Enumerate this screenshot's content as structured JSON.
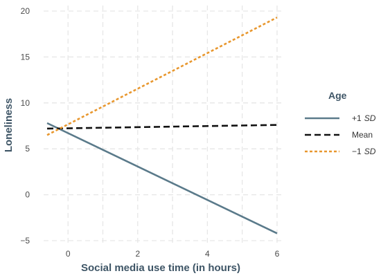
{
  "chart_data": {
    "type": "line",
    "title": "",
    "xlabel": "Social media use time (in hours)",
    "ylabel": "Loneliness",
    "xlim": [
      -0.7,
      6.2
    ],
    "ylim": [
      -5.6,
      20.6
    ],
    "xticks": [
      0,
      2,
      4,
      6
    ],
    "yticks": [
      -5,
      0,
      5,
      10,
      15,
      20
    ],
    "grid": true,
    "legend": {
      "title": "Age",
      "placement": "right"
    },
    "series": [
      {
        "name": "+1",
        "name_suffix": "SD",
        "color": "#5a7a8a",
        "style": "solid",
        "x": [
          -0.6,
          6.0
        ],
        "y": [
          7.8,
          -4.2
        ]
      },
      {
        "name": "Mean",
        "color": "#111111",
        "style": "dashed",
        "x": [
          -0.6,
          6.0
        ],
        "y": [
          7.2,
          7.6
        ]
      },
      {
        "name": "−1",
        "name_suffix": "SD",
        "color": "#e8972e",
        "style": "dotted",
        "x": [
          -0.6,
          6.0
        ],
        "y": [
          6.5,
          19.3
        ]
      }
    ]
  }
}
